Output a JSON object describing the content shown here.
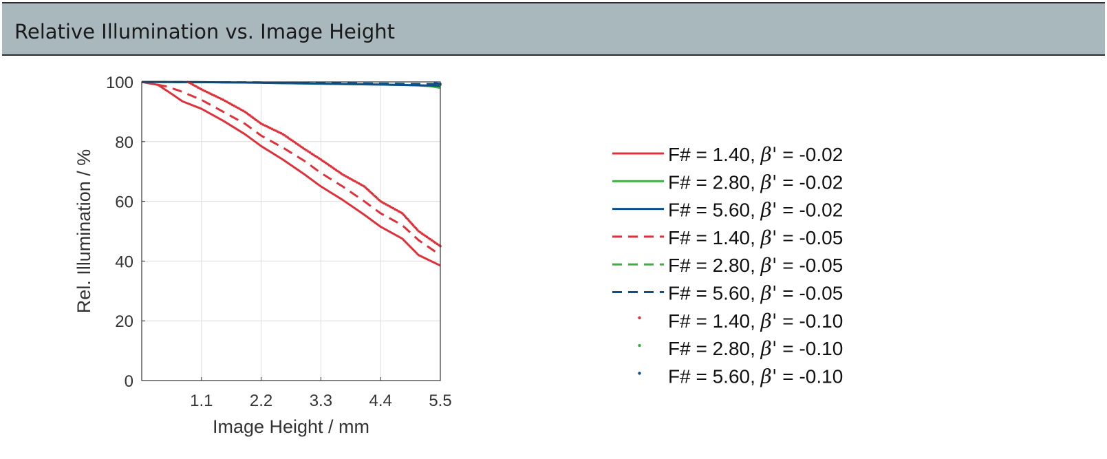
{
  "header": {
    "title": "Relative Illumination vs. Image Height"
  },
  "chart_data": {
    "type": "line",
    "title": "Relative Illumination vs. Image Height",
    "xlabel": "Image Height / mm",
    "ylabel": "Rel. Illumination / %",
    "xlim": [
      0,
      5.5
    ],
    "ylim": [
      0,
      100
    ],
    "xticks": [
      1.1,
      2.2,
      3.3,
      4.4,
      5.5
    ],
    "xtick_labels": [
      "1.1",
      "2.2",
      "3.3",
      "4.4",
      "5.5"
    ],
    "yticks": [
      0,
      20,
      40,
      60,
      80,
      100
    ],
    "ytick_labels": [
      "0",
      "20",
      "40",
      "60",
      "80",
      "100"
    ],
    "grid": true,
    "legend_position": "right",
    "series": [
      {
        "name": "F# = 1.40, β' = -0.02",
        "label_prefix": "F# = 1.40, ",
        "beta": "β'",
        "label_suffix": " = -0.02",
        "color": "#e0313b",
        "style": "solid",
        "x": [
          0,
          0.3,
          0.55,
          0.75,
          1.1,
          1.5,
          1.9,
          2.2,
          2.6,
          3.0,
          3.3,
          3.7,
          4.1,
          4.4,
          4.8,
          5.1,
          5.5
        ],
        "y": [
          100,
          99,
          96,
          93.5,
          91,
          87,
          82.5,
          78.5,
          74,
          69,
          65,
          60.5,
          55.5,
          51.5,
          47.5,
          42,
          38.5
        ]
      },
      {
        "name": "F# = 2.80, β' = -0.02",
        "label_prefix": "F# = 2.80, ",
        "beta": "β'",
        "label_suffix": " = -0.02",
        "color": "#3cb043",
        "style": "solid",
        "x": [
          0,
          1.1,
          2.2,
          3.3,
          4.4,
          5.0,
          5.3,
          5.5
        ],
        "y": [
          100,
          99.9,
          99.7,
          99.4,
          99.1,
          98.9,
          98.6,
          98
        ]
      },
      {
        "name": "F# = 5.60, β' = -0.02",
        "label_prefix": "F# = 5.60, ",
        "beta": "β'",
        "label_suffix": " = -0.02",
        "color": "#0b4f8a",
        "style": "solid",
        "x": [
          0,
          1.1,
          2.2,
          3.3,
          4.4,
          5.5
        ],
        "y": [
          100,
          99.9,
          99.7,
          99.4,
          99.1,
          98.7
        ]
      },
      {
        "name": "F# = 1.40, β' = -0.05",
        "label_prefix": "F# = 1.40, ",
        "beta": "β'",
        "label_suffix": " = -0.05",
        "color": "#e0313b",
        "style": "dashed",
        "x": [
          0,
          0.45,
          0.7,
          1.1,
          1.5,
          1.9,
          2.2,
          2.6,
          3.0,
          3.3,
          3.7,
          4.1,
          4.4,
          4.8,
          5.1,
          5.5
        ],
        "y": [
          100,
          98.5,
          97,
          94,
          90,
          86,
          82,
          78,
          73.5,
          69.5,
          65,
          60,
          56,
          52,
          47,
          42
        ]
      },
      {
        "name": "F# = 2.80, β' = -0.05",
        "label_prefix": "F# = 2.80, ",
        "beta": "β'",
        "label_suffix": " = -0.05",
        "color": "#3cb043",
        "style": "dashed",
        "x": [
          0,
          1.1,
          2.2,
          3.3,
          4.4,
          5.5
        ],
        "y": [
          100,
          99.9,
          99.8,
          99.6,
          99.4,
          99.2
        ]
      },
      {
        "name": "F# = 5.60, β' = -0.05",
        "label_prefix": "F# = 5.60, ",
        "beta": "β'",
        "label_suffix": " = -0.05",
        "color": "#0b4f8a",
        "style": "dashed",
        "x": [
          0,
          1.1,
          2.2,
          3.3,
          4.4,
          5.5
        ],
        "y": [
          100,
          99.9,
          99.8,
          99.6,
          99.4,
          99.2
        ]
      },
      {
        "name": "F# = 1.40, β' = -0.10",
        "label_prefix": "F# = 1.40, ",
        "beta": "β'",
        "label_suffix": " = -0.10",
        "color": "#e0313b",
        "style": "dotted",
        "x": [
          0.85,
          1.1,
          1.5,
          1.9,
          2.2,
          2.6,
          3.0,
          3.3,
          3.7,
          4.1,
          4.4,
          4.8,
          5.1,
          5.5
        ],
        "y": [
          100,
          97.5,
          94,
          90,
          86,
          82.5,
          77.5,
          74,
          69,
          65,
          60,
          56,
          50,
          45
        ]
      },
      {
        "name": "F# = 2.80, β' = -0.10",
        "label_prefix": "F# = 2.80, ",
        "beta": "β'",
        "label_suffix": " = -0.10",
        "color": "#3cb043",
        "style": "dotted",
        "x": [
          5.45,
          5.5
        ],
        "y": [
          99.3,
          99
        ]
      },
      {
        "name": "F# = 5.60, β' = -0.10",
        "label_prefix": "F# = 5.60, ",
        "beta": "β'",
        "label_suffix": " = -0.10",
        "color": "#0b4f8a",
        "style": "dotted",
        "x": [
          5.4,
          5.5
        ],
        "y": [
          99.5,
          99.3
        ]
      }
    ]
  }
}
